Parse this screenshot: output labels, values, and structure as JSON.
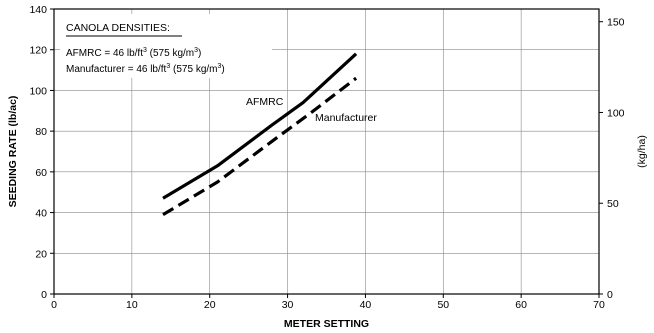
{
  "chart_data": {
    "type": "line",
    "xlabel": "METER SETTING",
    "ylabel": "SEEDING RATE (lb/ac)",
    "y2label": "(kg/ha)",
    "xlim": [
      0,
      70
    ],
    "ylim": [
      0,
      140
    ],
    "y2lim": [
      0,
      157
    ],
    "x_ticks": [
      "0",
      "10",
      "20",
      "30",
      "40",
      "50",
      "60",
      "70"
    ],
    "y_ticks": [
      "0",
      "20",
      "40",
      "60",
      "80",
      "100",
      "120",
      "140"
    ],
    "y2_ticks": [
      "0",
      "50",
      "100",
      "150"
    ],
    "grid": true,
    "legend": {
      "heading": "CANOLA DENSITIES:",
      "line1": {
        "prefix": "AFMRC = 46 lb/ft",
        "sup1": "3",
        "middle": " (575 kg/m",
        "sup2": "3",
        "suffix": ")"
      },
      "line2": {
        "prefix": "Manufacturer = 46 lb/ft",
        "sup1": "3",
        "middle": " (575 kg/m",
        "sup2": "3",
        "suffix": ")"
      }
    },
    "series": [
      {
        "name": "AFMRC",
        "style": "solid",
        "color": "#000000",
        "x": [
          14,
          21,
          28,
          32,
          38.8
        ],
        "y": [
          47,
          63,
          83,
          94,
          118
        ]
      },
      {
        "name": "Manufacturer",
        "style": "dashed",
        "color": "#000000",
        "x": [
          14,
          21,
          28,
          33,
          38.8
        ],
        "y": [
          39,
          55,
          75,
          89,
          106
        ]
      }
    ]
  }
}
